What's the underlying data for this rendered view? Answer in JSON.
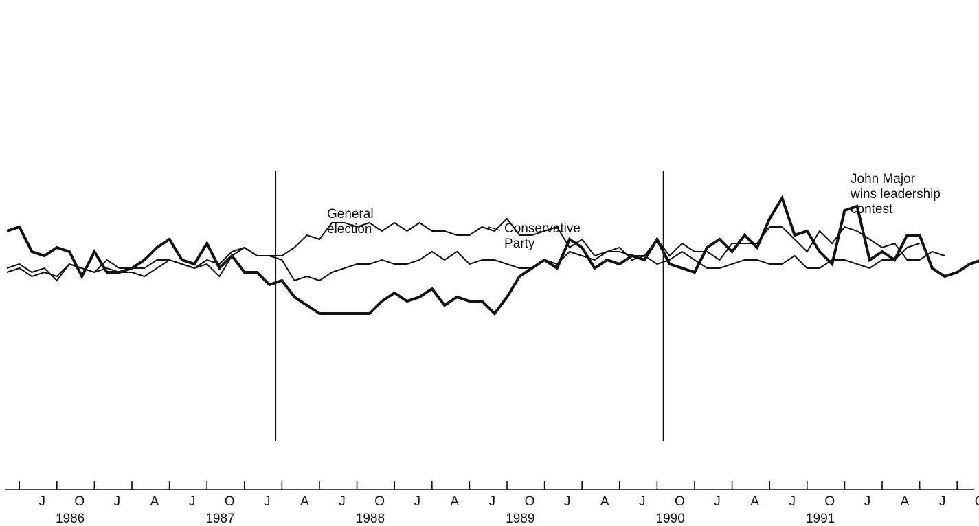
{
  "chart_data": {
    "type": "line",
    "title": "",
    "xlabel": "",
    "ylabel": "",
    "y_axis_shown": false,
    "grid": false,
    "legend": "none",
    "x_unit": "month index (0 = May 1986)",
    "x_tick_labels": [
      "J",
      "O",
      "J",
      "A",
      "J",
      "O",
      "J",
      "A",
      "J",
      "O",
      "J",
      "A",
      "J",
      "O",
      "J",
      "A",
      "J",
      "O",
      "J",
      "A",
      "J",
      "O",
      "J",
      "A",
      "J",
      "O"
    ],
    "year_labels": [
      "1986",
      "1987",
      "1988",
      "1989",
      "1990",
      "1991"
    ],
    "ylim": [
      0,
      100
    ],
    "series": [
      {
        "style": "heavy",
        "values": [
          59,
          60,
          54,
          53,
          55,
          54,
          48,
          54,
          49,
          49,
          50,
          52,
          55,
          57,
          52,
          51,
          56,
          50,
          53,
          49,
          49,
          46,
          47,
          43,
          41,
          39,
          39,
          39,
          39,
          39,
          42,
          44,
          42,
          43,
          45,
          41,
          43,
          42,
          42,
          39,
          43,
          48,
          50,
          52,
          50,
          57,
          55,
          50,
          52,
          51,
          53,
          52,
          57,
          51,
          50,
          49,
          55,
          57,
          54,
          58,
          55,
          62,
          67,
          58,
          59,
          54,
          51,
          64,
          65,
          52,
          54,
          52,
          58,
          58,
          50,
          48,
          49,
          51,
          52
        ]
      },
      {
        "style": "thin",
        "name": "Conservative Party",
        "values": [
          50,
          51,
          49,
          50,
          47,
          51,
          50,
          49,
          52,
          50,
          50,
          50,
          52,
          52,
          51,
          50,
          51,
          48,
          53,
          55,
          53,
          53,
          53,
          55,
          58,
          57,
          61,
          61,
          60,
          61,
          59,
          61,
          59,
          61,
          59,
          59,
          58,
          58,
          60,
          59,
          62,
          58,
          58,
          59,
          60,
          55,
          57,
          53,
          54,
          55,
          52,
          53,
          57,
          53,
          56,
          54,
          54,
          52,
          56,
          56,
          56,
          60,
          60,
          57,
          54,
          59,
          56,
          60,
          59,
          57,
          55,
          56,
          52,
          52,
          54,
          53
        ]
      },
      {
        "style": "thin",
        "values": [
          49,
          50,
          48,
          49,
          48,
          51,
          50,
          49,
          50,
          49,
          49,
          48,
          50,
          52,
          51,
          50,
          52,
          51,
          54,
          55,
          53,
          53,
          52,
          47,
          48,
          47,
          49,
          50,
          51,
          51,
          52,
          51,
          51,
          52,
          54,
          52,
          54,
          51,
          52,
          52,
          51,
          50,
          50,
          52,
          51,
          54,
          53,
          52,
          54,
          54,
          53,
          53,
          51,
          52,
          54,
          52,
          50,
          50,
          51,
          52,
          52,
          51,
          51,
          53,
          50,
          50,
          52,
          52,
          51,
          50,
          52,
          52,
          55,
          56
        ]
      }
    ],
    "annotations": [
      {
        "x": 21.5,
        "lines": [
          "General",
          "election"
        ]
      },
      {
        "x": 52.5,
        "lines": [
          "John Major",
          "wins leadership",
          "contest"
        ]
      },
      {
        "x": 38.5,
        "y": 60,
        "lines": [
          "Conservative",
          "Party"
        ]
      }
    ]
  }
}
